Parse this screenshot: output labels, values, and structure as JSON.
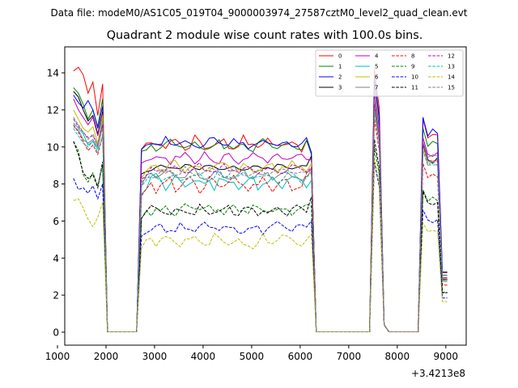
{
  "chart_data": {
    "type": "line",
    "supertitle": "Data file: modeM0/AS1C05_019T04_9000003974_27587cztM0_level2_quad_clean.evt",
    "title": "Quadrant 2 module wise count rates with 100.0s bins.",
    "xlabel": "",
    "ylabel": "",
    "x_offset_label": "+3.4213e8",
    "xlim": [
      1150,
      9420
    ],
    "ylim": [
      -0.7,
      15.4
    ],
    "x_ticks": [
      1000,
      2000,
      3000,
      4000,
      5000,
      6000,
      7000,
      8000,
      9000
    ],
    "x_tick_labels": [
      "1000",
      "2000",
      "3000",
      "4000",
      "5000",
      "6000",
      "7000",
      "8000",
      "9000"
    ],
    "y_ticks": [
      0,
      2,
      4,
      6,
      8,
      10,
      12,
      14
    ],
    "y_tick_labels": [
      "0",
      "2",
      "4",
      "6",
      "8",
      "10",
      "12",
      "14"
    ],
    "grid": false,
    "legend_position": "top-right",
    "legend_columns": 4,
    "x_start": 1330,
    "bin_width": 100,
    "series": [
      {
        "name": "0",
        "color": "#ff0000",
        "dash": "solid",
        "base": 10.2,
        "pre": 13.4,
        "post": 9.7,
        "peak": 14.2,
        "late": 11.5,
        "noise": 0.25,
        "lead": [
          14.1,
          14.3,
          13.9,
          12.9,
          13.5,
          11.7
        ]
      },
      {
        "name": "1",
        "color": "#008000",
        "dash": "solid",
        "base": 10.1,
        "pre": 12.6,
        "post": 9.6,
        "peak": 13.5,
        "late": 11.0,
        "noise": 0.2,
        "lead": [
          13.2,
          12.9,
          12.3,
          11.5,
          12.0,
          11.1
        ]
      },
      {
        "name": "2",
        "color": "#0000ff",
        "dash": "solid",
        "base": 10.2,
        "pre": 12.2,
        "post": 9.7,
        "peak": 13.7,
        "late": 11.6,
        "noise": 0.2,
        "lead": [
          12.8,
          12.4,
          12.1,
          12.5,
          12.0,
          11.0
        ]
      },
      {
        "name": "3",
        "color": "#000000",
        "dash": "solid",
        "base": 8.9,
        "pre": 11.9,
        "post": 9.5,
        "peak": 12.5,
        "late": 10.2,
        "noise": 0.1,
        "lead": [
          13.0,
          12.7,
          12.0,
          11.4,
          11.7,
          10.7
        ]
      },
      {
        "name": "4",
        "color": "#bf00bf",
        "dash": "solid",
        "base": 9.4,
        "pre": 11.8,
        "post": 9.3,
        "peak": 13.0,
        "late": 10.5,
        "noise": 0.2,
        "lead": [
          12.6,
          12.0,
          11.6,
          11.2,
          11.6,
          10.6
        ]
      },
      {
        "name": "5",
        "color": "#00bfbf",
        "dash": "solid",
        "base": 8.1,
        "pre": 11.5,
        "post": 8.2,
        "peak": 12.2,
        "late": 10.1,
        "noise": 0.25,
        "lead": [
          11.3,
          11.0,
          10.7,
          10.1,
          10.3,
          9.9
        ]
      },
      {
        "name": "6",
        "color": "#bfbf00",
        "dash": "solid",
        "base": 8.9,
        "pre": 11.7,
        "post": 9.1,
        "peak": 12.0,
        "late": 10.0,
        "noise": 0.2,
        "lead": [
          12.0,
          11.5,
          11.0,
          10.8,
          11.1,
          10.2
        ]
      },
      {
        "name": "7",
        "color": "#808080",
        "dash": "solid",
        "base": 8.5,
        "pre": 11.2,
        "post": 8.7,
        "peak": 12.6,
        "late": 10.3,
        "noise": 0.2,
        "lead": [
          11.1,
          10.9,
          10.4,
          10.2,
          10.4,
          10.0
        ]
      },
      {
        "name": "8",
        "color": "#ff0000",
        "dash": "dashed",
        "base": 8.0,
        "pre": 10.6,
        "post": 8.8,
        "peak": 11.5,
        "late": 9.1,
        "noise": 0.3,
        "lead": [
          11.2,
          10.8,
          10.3,
          9.8,
          10.1,
          9.6
        ]
      },
      {
        "name": "9",
        "color": "#008000",
        "dash": "dashed",
        "base": 6.6,
        "pre": 9.0,
        "post": 6.8,
        "peak": 10.0,
        "late": 7.7,
        "noise": 0.2,
        "lead": [
          10.3,
          9.8,
          8.5,
          8.1,
          8.6,
          7.9
        ]
      },
      {
        "name": "10",
        "color": "#0000ff",
        "dash": "dashed",
        "base": 5.6,
        "pre": 8.0,
        "post": 6.0,
        "peak": 9.2,
        "late": 6.6,
        "noise": 0.2,
        "lead": [
          8.3,
          7.7,
          7.8,
          7.5,
          7.9,
          7.2
        ]
      },
      {
        "name": "11",
        "color": "#000000",
        "dash": "dashed",
        "base": 6.6,
        "pre": 9.2,
        "post": 7.3,
        "peak": 10.4,
        "late": 7.6,
        "noise": 0.2,
        "lead": [
          10.3,
          9.6,
          8.6,
          8.3,
          8.5,
          7.8
        ]
      },
      {
        "name": "12",
        "color": "#bf00bf",
        "dash": "dashed",
        "base": 8.8,
        "pre": 11.2,
        "post": 8.9,
        "peak": 12.3,
        "late": 10.1,
        "noise": 0.2,
        "lead": [
          11.5,
          11.1,
          10.8,
          10.5,
          10.6,
          10.1
        ]
      },
      {
        "name": "13",
        "color": "#00bfbf",
        "dash": "dashed",
        "base": 8.4,
        "pre": 10.7,
        "post": 8.6,
        "peak": 11.9,
        "late": 9.8,
        "noise": 0.2,
        "lead": [
          11.0,
          10.6,
          10.2,
          10.0,
          10.3,
          9.7
        ]
      },
      {
        "name": "14",
        "color": "#bfbf00",
        "dash": "dashed",
        "base": 4.9,
        "pre": 7.0,
        "post": 5.3,
        "peak": 9.4,
        "late": 5.9,
        "noise": 0.25,
        "lead": [
          7.1,
          7.2,
          6.7,
          6.1,
          5.7,
          6.2
        ]
      },
      {
        "name": "15",
        "color": "#808080",
        "dash": "dashed",
        "base": 8.6,
        "pre": 11.0,
        "post": 8.7,
        "peak": 12.1,
        "late": 9.8,
        "noise": 0.2,
        "lead": [
          11.6,
          11.2,
          10.8,
          10.4,
          10.7,
          10.1
        ]
      }
    ]
  }
}
